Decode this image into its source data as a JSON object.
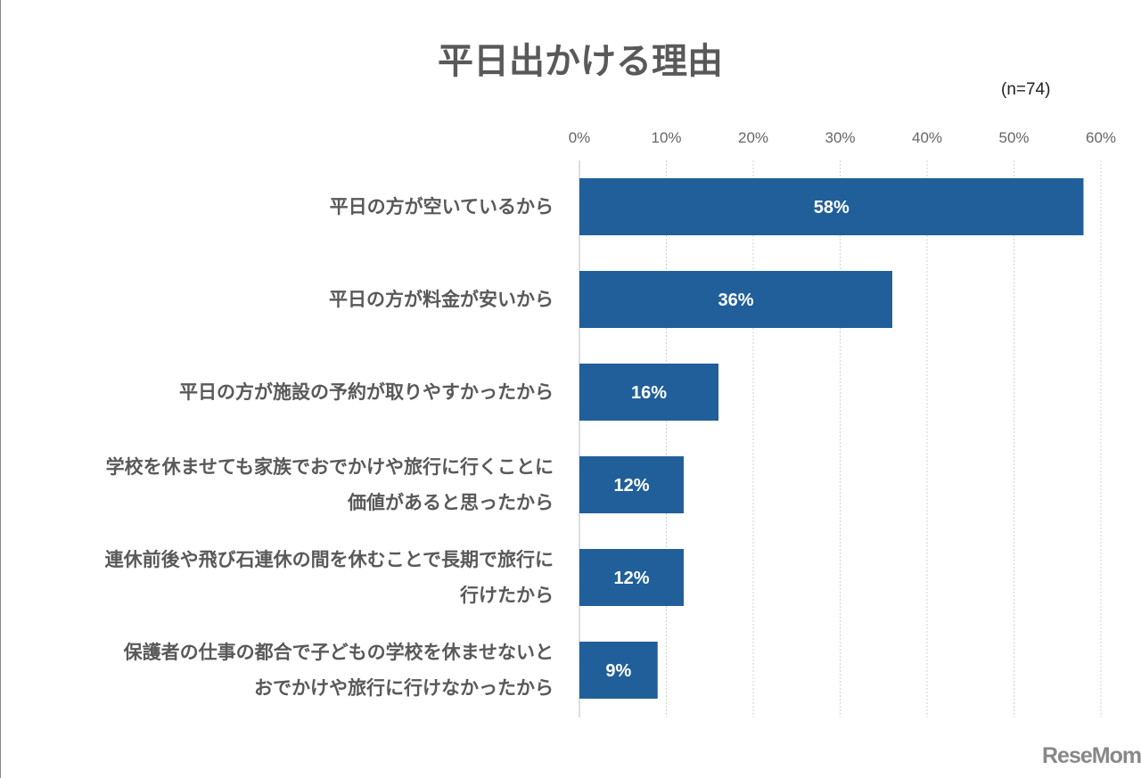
{
  "chart_data": {
    "type": "bar",
    "orientation": "horizontal",
    "title": "平日出かける理由",
    "note": "(n=74)",
    "categories": [
      [
        "平日の方が空いているから"
      ],
      [
        "平日の方が料金が安いから"
      ],
      [
        "平日の方が施設の予約が取りやすかったから"
      ],
      [
        "学校を休ませても家族でおでかけや旅行に行くことに",
        "価値があると思ったから"
      ],
      [
        "連休前後や飛び石連休の間を休むことで長期で旅行に",
        "行けたから"
      ],
      [
        "保護者の仕事の都合で子どもの学校を休ませないと",
        "おでかけや旅行に行けなかったから"
      ]
    ],
    "values": [
      58,
      36,
      16,
      12,
      12,
      9
    ],
    "data_labels": [
      "58%",
      "36%",
      "16%",
      "12%",
      "12%",
      "9%"
    ],
    "xlim": [
      0,
      60
    ],
    "ticks": [
      "0%",
      "10%",
      "20%",
      "30%",
      "40%",
      "50%",
      "60%"
    ],
    "tick_values": [
      0,
      10,
      20,
      30,
      40,
      50,
      60
    ],
    "axis_position": "top",
    "grid": true,
    "bar_color": "#215f9a"
  },
  "logo": "ReseMom"
}
